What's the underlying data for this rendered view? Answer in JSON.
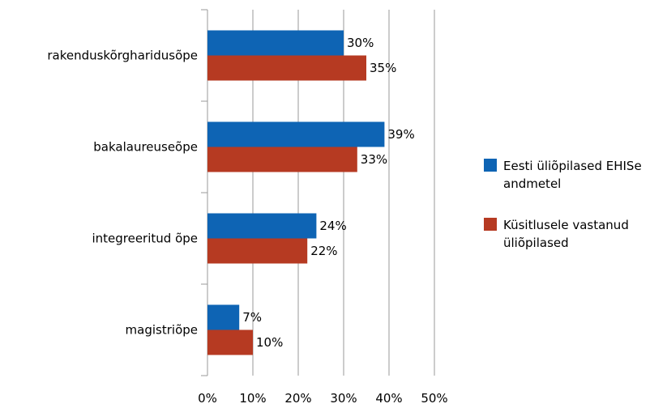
{
  "chart_data": {
    "type": "bar",
    "orientation": "horizontal",
    "categories": [
      "rakenduskõrgharidusõpe",
      "bakalaureuseõpe",
      "integreeritud õpe",
      "magistriõpe"
    ],
    "series": [
      {
        "name": "Eesti üliõpilased EHISe andmetel",
        "values": [
          30,
          39,
          24,
          7
        ],
        "labels": [
          "30%",
          "39%",
          "24%",
          "7%"
        ],
        "color": "#0e64b4"
      },
      {
        "name": "Küsitlusele vastanud üliõpilased",
        "values": [
          35,
          33,
          22,
          10
        ],
        "labels": [
          "35%",
          "33%",
          "22%",
          "10%"
        ],
        "color": "#b63a22"
      }
    ],
    "xlim": [
      0,
      50
    ],
    "xticks": [
      0,
      10,
      20,
      30,
      40,
      50
    ],
    "xtick_labels": [
      "0%",
      "10%",
      "20%",
      "30%",
      "40%",
      "50%"
    ],
    "grid": "vertical",
    "legend_position": "right",
    "legend_lines": [
      [
        "Eesti üliõpilased EHISe",
        "andmetel"
      ],
      [
        "Küsitlusele vastanud",
        "üliõpilased"
      ]
    ]
  }
}
